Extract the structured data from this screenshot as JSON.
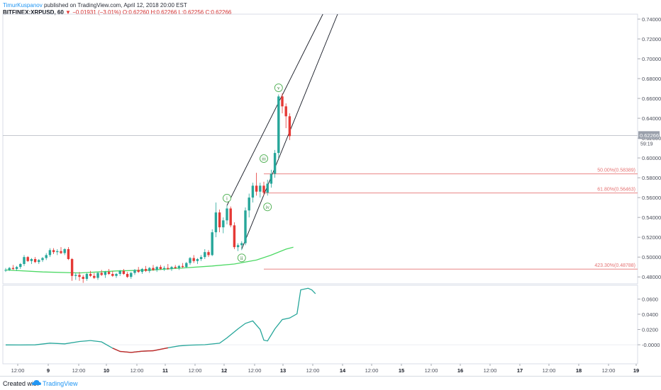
{
  "header": {
    "author": "TimurKuspanov",
    "published_text": "published on TradingView.com, April 12, 2018 20:00 EST",
    "symbol": "BITFINEX:XRPUSD, 60",
    "arrow": "▼",
    "change": "−0.01931 (−3.01%)",
    "ohlc": "O:0.62260 H:0.62266 L:0.62256 C:0.62266"
  },
  "footer": {
    "created": "Created with",
    "brand": "TradingView"
  },
  "colors": {
    "up": "#26a69a",
    "down": "#e53935",
    "ma": "#4cd964",
    "ma_low": "#c62828",
    "fib": "#e57373",
    "osc": "#26a69a"
  },
  "chart_data": [
    {
      "type": "candlestick",
      "y_ticks": [
        "0.74000",
        "0.72000",
        "0.70000",
        "0.68000",
        "0.66000",
        "0.64000",
        "0.62000",
        "0.60000",
        "0.58000",
        "0.56000",
        "0.54000",
        "0.52000",
        "0.50000",
        "0.48000"
      ],
      "ylim": [
        0.473,
        0.745
      ],
      "x_labels": [
        "12:00",
        "9",
        "12:00",
        "10",
        "12:00",
        "11",
        "12:00",
        "12",
        "12:00",
        "13",
        "12:00",
        "14",
        "12:00",
        "15",
        "12:00",
        "16",
        "12:00",
        "17",
        "12:00",
        "18",
        "12:00",
        "19"
      ],
      "last_price_label": "0.62266",
      "countdown_label": "59:19",
      "last_price": 0.62266,
      "ohlc": [
        [
          0.487,
          0.489,
          0.485,
          0.487
        ],
        [
          0.487,
          0.49,
          0.486,
          0.489
        ],
        [
          0.489,
          0.492,
          0.487,
          0.488
        ],
        [
          0.488,
          0.491,
          0.486,
          0.49
        ],
        [
          0.49,
          0.494,
          0.488,
          0.493
        ],
        [
          0.493,
          0.502,
          0.491,
          0.5
        ],
        [
          0.5,
          0.501,
          0.495,
          0.496
        ],
        [
          0.496,
          0.499,
          0.493,
          0.498
        ],
        [
          0.498,
          0.5,
          0.494,
          0.495
        ],
        [
          0.495,
          0.498,
          0.493,
          0.497
        ],
        [
          0.497,
          0.5,
          0.495,
          0.499
        ],
        [
          0.499,
          0.504,
          0.497,
          0.502
        ],
        [
          0.502,
          0.509,
          0.5,
          0.507
        ],
        [
          0.507,
          0.509,
          0.503,
          0.505
        ],
        [
          0.505,
          0.508,
          0.502,
          0.506
        ],
        [
          0.506,
          0.51,
          0.503,
          0.504
        ],
        [
          0.504,
          0.509,
          0.502,
          0.508
        ],
        [
          0.508,
          0.51,
          0.497,
          0.498
        ],
        [
          0.498,
          0.499,
          0.476,
          0.481
        ],
        [
          0.481,
          0.484,
          0.477,
          0.482
        ],
        [
          0.482,
          0.485,
          0.476,
          0.48
        ],
        [
          0.48,
          0.482,
          0.474,
          0.478
        ],
        [
          0.478,
          0.484,
          0.476,
          0.483
        ],
        [
          0.483,
          0.486,
          0.48,
          0.481
        ],
        [
          0.481,
          0.484,
          0.478,
          0.479
        ],
        [
          0.479,
          0.485,
          0.477,
          0.484
        ],
        [
          0.484,
          0.487,
          0.481,
          0.482
        ],
        [
          0.482,
          0.486,
          0.479,
          0.485
        ],
        [
          0.485,
          0.488,
          0.482,
          0.483
        ],
        [
          0.483,
          0.486,
          0.48,
          0.481
        ],
        [
          0.481,
          0.484,
          0.479,
          0.483
        ],
        [
          0.483,
          0.487,
          0.481,
          0.486
        ],
        [
          0.486,
          0.488,
          0.482,
          0.483
        ],
        [
          0.483,
          0.485,
          0.479,
          0.48
        ],
        [
          0.48,
          0.485,
          0.478,
          0.484
        ],
        [
          0.484,
          0.488,
          0.482,
          0.487
        ],
        [
          0.487,
          0.49,
          0.484,
          0.485
        ],
        [
          0.485,
          0.489,
          0.483,
          0.488
        ],
        [
          0.488,
          0.491,
          0.485,
          0.486
        ],
        [
          0.486,
          0.49,
          0.484,
          0.489
        ],
        [
          0.489,
          0.492,
          0.486,
          0.487
        ],
        [
          0.487,
          0.491,
          0.485,
          0.49
        ],
        [
          0.49,
          0.492,
          0.487,
          0.488
        ],
        [
          0.488,
          0.491,
          0.486,
          0.489
        ],
        [
          0.489,
          0.493,
          0.487,
          0.488
        ],
        [
          0.488,
          0.491,
          0.486,
          0.49
        ],
        [
          0.49,
          0.492,
          0.488,
          0.489
        ],
        [
          0.489,
          0.492,
          0.487,
          0.491
        ],
        [
          0.491,
          0.494,
          0.489,
          0.49
        ],
        [
          0.49,
          0.495,
          0.489,
          0.494
        ],
        [
          0.494,
          0.5,
          0.492,
          0.499
        ],
        [
          0.499,
          0.502,
          0.494,
          0.496
        ],
        [
          0.496,
          0.499,
          0.493,
          0.498
        ],
        [
          0.498,
          0.502,
          0.496,
          0.5
        ],
        [
          0.5,
          0.508,
          0.498,
          0.505
        ],
        [
          0.505,
          0.507,
          0.5,
          0.502
        ],
        [
          0.502,
          0.528,
          0.501,
          0.525
        ],
        [
          0.525,
          0.555,
          0.52,
          0.545
        ],
        [
          0.545,
          0.548,
          0.525,
          0.53
        ],
        [
          0.53,
          0.54,
          0.524,
          0.537
        ],
        [
          0.537,
          0.552,
          0.533,
          0.549
        ],
        [
          0.549,
          0.551,
          0.53,
          0.532
        ],
        [
          0.532,
          0.535,
          0.508,
          0.51
        ],
        [
          0.51,
          0.514,
          0.506,
          0.512
        ],
        [
          0.512,
          0.516,
          0.507,
          0.514
        ],
        [
          0.514,
          0.55,
          0.512,
          0.547
        ],
        [
          0.547,
          0.564,
          0.54,
          0.56
        ],
        [
          0.56,
          0.575,
          0.555,
          0.572
        ],
        [
          0.572,
          0.585,
          0.562,
          0.566
        ],
        [
          0.566,
          0.575,
          0.56,
          0.572
        ],
        [
          0.572,
          0.576,
          0.562,
          0.565
        ],
        [
          0.565,
          0.578,
          0.562,
          0.574
        ],
        [
          0.574,
          0.588,
          0.57,
          0.584
        ],
        [
          0.584,
          0.608,
          0.58,
          0.605
        ],
        [
          0.605,
          0.664,
          0.6,
          0.662
        ],
        [
          0.662,
          0.665,
          0.645,
          0.652
        ],
        [
          0.652,
          0.655,
          0.63,
          0.642
        ],
        [
          0.642,
          0.645,
          0.618,
          0.622
        ]
      ],
      "moving_average": [
        [
          0,
          0.487
        ],
        [
          10,
          0.485
        ],
        [
          20,
          0.484
        ],
        [
          30,
          0.486
        ],
        [
          40,
          0.487
        ],
        [
          48,
          0.489
        ],
        [
          56,
          0.491
        ],
        [
          62,
          0.493
        ],
        [
          68,
          0.497
        ],
        [
          72,
          0.502
        ],
        [
          76,
          0.508
        ],
        [
          78,
          0.51
        ]
      ],
      "fib_levels": [
        {
          "label": "50.00%(0.58389)",
          "value": 0.58389
        },
        {
          "label": "61.80%(0.56463)",
          "value": 0.56463
        },
        {
          "label": "423.30%(0.48788)",
          "value": 0.48788
        }
      ],
      "trend_channel": [
        {
          "from": [
            60,
            0.552
          ],
          "to": [
            86,
            0.748
          ]
        },
        {
          "from": [
            64,
            0.508
          ],
          "to": [
            90,
            0.748
          ]
        }
      ],
      "wave_labels": [
        {
          "text": "i",
          "bar": 60,
          "value": 0.5594
        },
        {
          "text": "ii",
          "bar": 64,
          "value": 0.4992
        },
        {
          "text": "iii",
          "bar": 70,
          "value": 0.5993
        },
        {
          "text": "iv",
          "bar": 71,
          "value": 0.5506
        },
        {
          "text": "v",
          "bar": 74,
          "value": 0.6707
        }
      ]
    },
    {
      "type": "line",
      "y_ticks": [
        "0.0600",
        "0.0400",
        "0.0200",
        "-0.0000"
      ],
      "ylim": [
        -0.025,
        0.078
      ],
      "values": [
        [
          0,
          -0.0002
        ],
        [
          4,
          -0.0003
        ],
        [
          8,
          -0.0001
        ],
        [
          12,
          0.0021
        ],
        [
          16,
          0.0012
        ],
        [
          20,
          0.0042
        ],
        [
          23,
          0.0055
        ],
        [
          26,
          0.0038
        ],
        [
          29,
          -0.0045
        ],
        [
          31,
          -0.0088
        ],
        [
          34,
          -0.0101
        ],
        [
          37,
          -0.0085
        ],
        [
          40,
          -0.0078
        ],
        [
          44,
          -0.004
        ],
        [
          47,
          -0.0015
        ],
        [
          50,
          -0.0005
        ],
        [
          54,
          0.0001
        ],
        [
          58,
          0.002
        ],
        [
          60,
          0.009
        ],
        [
          63,
          0.0208
        ],
        [
          65,
          0.028
        ],
        [
          67,
          0.0312
        ],
        [
          69,
          0.02
        ],
        [
          70,
          0.006
        ],
        [
          71,
          0.005
        ],
        [
          73,
          0.0208
        ],
        [
          75,
          0.033
        ],
        [
          77,
          0.035
        ],
        [
          79,
          0.0405
        ],
        [
          80,
          0.072
        ],
        [
          82,
          0.074
        ],
        [
          83,
          0.072
        ],
        [
          84,
          0.067
        ]
      ]
    }
  ]
}
